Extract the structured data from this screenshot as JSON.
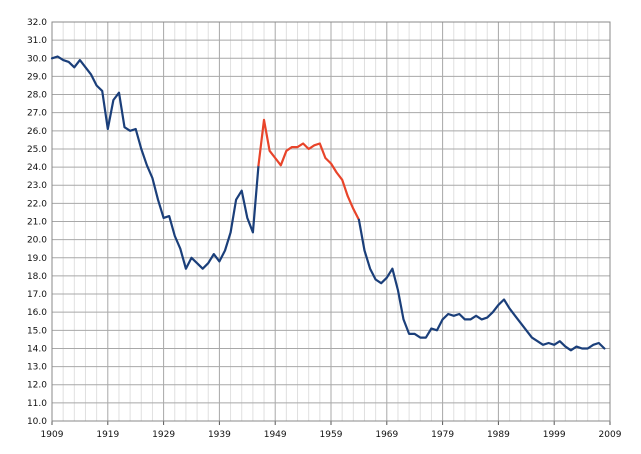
{
  "chart_data": {
    "type": "line",
    "title": "",
    "xlabel": "",
    "ylabel": "",
    "xlim": [
      1909,
      2009
    ],
    "ylim": [
      10.0,
      32.0
    ],
    "x_ticks": [
      "1909",
      "1919",
      "1929",
      "1939",
      "1949",
      "1959",
      "1969",
      "1979",
      "1989",
      "1999",
      "2009"
    ],
    "y_ticks": [
      "10.0",
      "11.0",
      "12.0",
      "13.0",
      "14.0",
      "15.0",
      "16.0",
      "17.0",
      "18.0",
      "19.0",
      "20.0",
      "21.0",
      "22.0",
      "23.0",
      "24.0",
      "25.0",
      "26.0",
      "27.0",
      "28.0",
      "29.0",
      "30.0",
      "31.0",
      "32.0"
    ],
    "grid": true,
    "legend": "none",
    "colors": {
      "blue": "#1b3f7a",
      "red": "#e8442a",
      "grid_major": "#a8a8a8",
      "grid_minor": "#e0e0e0"
    },
    "series": [
      {
        "color": "#1b3f7a",
        "x": [
          1909,
          1910,
          1911,
          1912,
          1913,
          1914,
          1915,
          1916,
          1917,
          1918,
          1919,
          1920,
          1921,
          1922,
          1923,
          1924,
          1925,
          1926,
          1927,
          1928,
          1929,
          1930,
          1931,
          1932,
          1933,
          1934,
          1935,
          1936,
          1937,
          1938,
          1939,
          1940,
          1941,
          1942,
          1943,
          1944,
          1945,
          1946
        ],
        "values": [
          30.0,
          30.1,
          29.9,
          29.8,
          29.5,
          29.9,
          29.5,
          29.1,
          28.5,
          28.2,
          26.1,
          27.7,
          28.1,
          26.2,
          26.0,
          26.1,
          25.0,
          24.1,
          23.4,
          22.2,
          21.2,
          21.3,
          20.2,
          19.5,
          18.4,
          19.0,
          18.7,
          18.4,
          18.7,
          19.2,
          18.8,
          19.4,
          20.4,
          22.2,
          22.7,
          21.2,
          20.4,
          24.1
        ]
      },
      {
        "color": "#e8442a",
        "x": [
          1946,
          1947,
          1948,
          1949,
          1950,
          1951,
          1952,
          1953,
          1954,
          1955,
          1956,
          1957,
          1958,
          1959,
          1960,
          1961,
          1962,
          1963,
          1964
        ],
        "values": [
          24.1,
          26.6,
          24.9,
          24.5,
          24.1,
          24.9,
          25.1,
          25.1,
          25.3,
          25.0,
          25.2,
          25.3,
          24.5,
          24.2,
          23.7,
          23.3,
          22.4,
          21.7,
          21.1
        ]
      },
      {
        "color": "#1b3f7a",
        "x": [
          1964,
          1965,
          1966,
          1967,
          1968,
          1969,
          1970,
          1971,
          1972,
          1973,
          1974,
          1975,
          1976,
          1977,
          1978,
          1979,
          1980,
          1981,
          1982,
          1983,
          1984,
          1985,
          1986,
          1987,
          1988,
          1989,
          1990,
          1991,
          1992,
          1993,
          1994,
          1995,
          1996,
          1997,
          1998,
          1999,
          2000,
          2001,
          2002,
          2003,
          2004,
          2005,
          2006,
          2007,
          2008
        ],
        "values": [
          21.1,
          19.4,
          18.4,
          17.8,
          17.6,
          17.9,
          18.4,
          17.2,
          15.6,
          14.8,
          14.8,
          14.6,
          14.6,
          15.1,
          15.0,
          15.6,
          15.9,
          15.8,
          15.9,
          15.6,
          15.6,
          15.8,
          15.6,
          15.7,
          16.0,
          16.4,
          16.7,
          16.2,
          15.8,
          15.4,
          15.0,
          14.6,
          14.4,
          14.2,
          14.3,
          14.2,
          14.4,
          14.1,
          13.9,
          14.1,
          14.0,
          14.0,
          14.2,
          14.3,
          14.0
        ]
      }
    ]
  }
}
